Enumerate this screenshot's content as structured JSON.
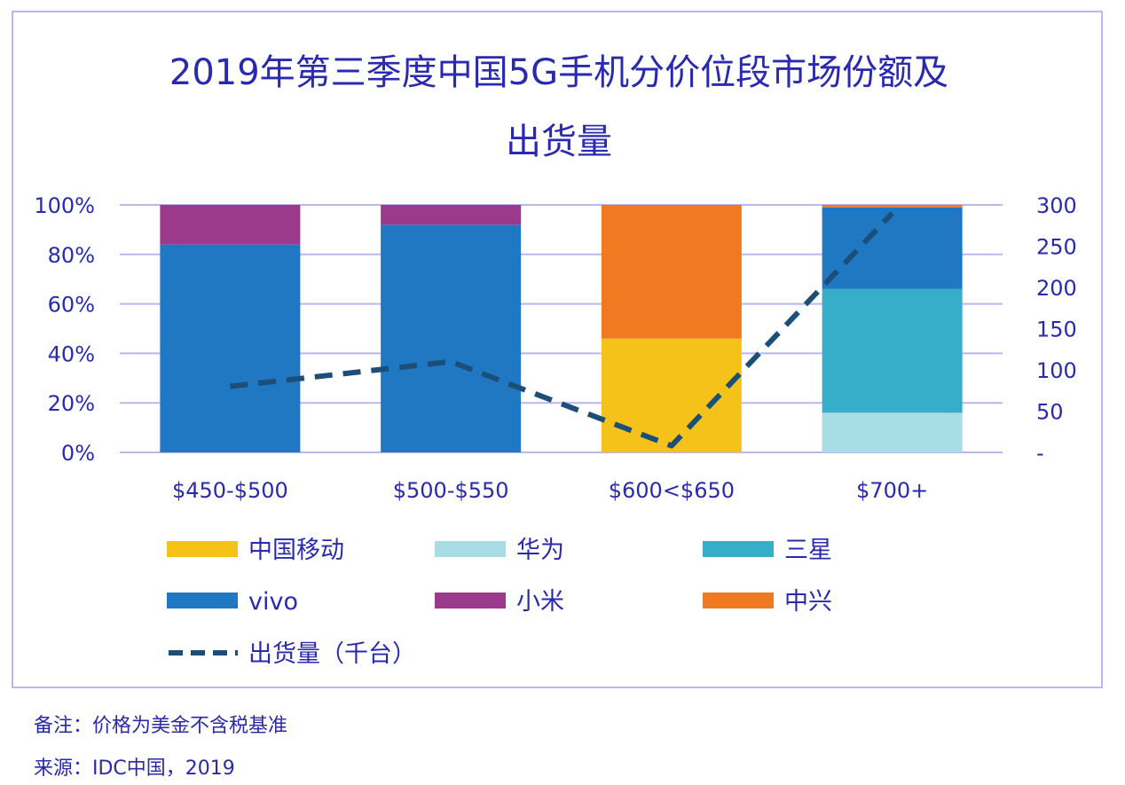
{
  "chart_data": {
    "type": "bar",
    "title_line1": "2019年第三季度中国5G手机分价位段市场份额及",
    "title_line2": "出货量",
    "categories": [
      "$450-$500",
      "$500-$550",
      "$600<$650",
      "$700+"
    ],
    "y_left_ticks": [
      "100%",
      "80%",
      "60%",
      "40%",
      "20%",
      "0%"
    ],
    "y_right_ticks": [
      "300",
      "250",
      "200",
      "150",
      "100",
      "50",
      "-"
    ],
    "ylim_left": [
      0,
      100
    ],
    "ylim_right": [
      0,
      300
    ],
    "stacked": true,
    "grid": true,
    "legend_position": "bottom",
    "series": [
      {
        "name": "中国移动",
        "color": "#f5c21a",
        "values": [
          0,
          0,
          46,
          0
        ]
      },
      {
        "name": "华为",
        "color": "#a8dde6",
        "values": [
          0,
          0,
          0,
          16
        ]
      },
      {
        "name": "三星",
        "color": "#36aec9",
        "values": [
          0,
          0,
          0,
          50
        ]
      },
      {
        "name": "vivo",
        "color": "#1f78c1",
        "values": [
          84,
          92,
          0,
          33
        ]
      },
      {
        "name": "小米",
        "color": "#9b3a8c",
        "values": [
          16,
          8,
          0,
          0
        ]
      },
      {
        "name": "中兴",
        "color": "#f07a22",
        "values": [
          0,
          0,
          54,
          1
        ]
      }
    ],
    "line_series": {
      "name": "出货量（千台）",
      "color": "#1b4f7a",
      "style": "dashed",
      "values": [
        80,
        110,
        8,
        290
      ]
    }
  },
  "notes": {
    "remark": "备注：价格为美金不含税基准",
    "source": "来源：IDC中国，2019"
  }
}
